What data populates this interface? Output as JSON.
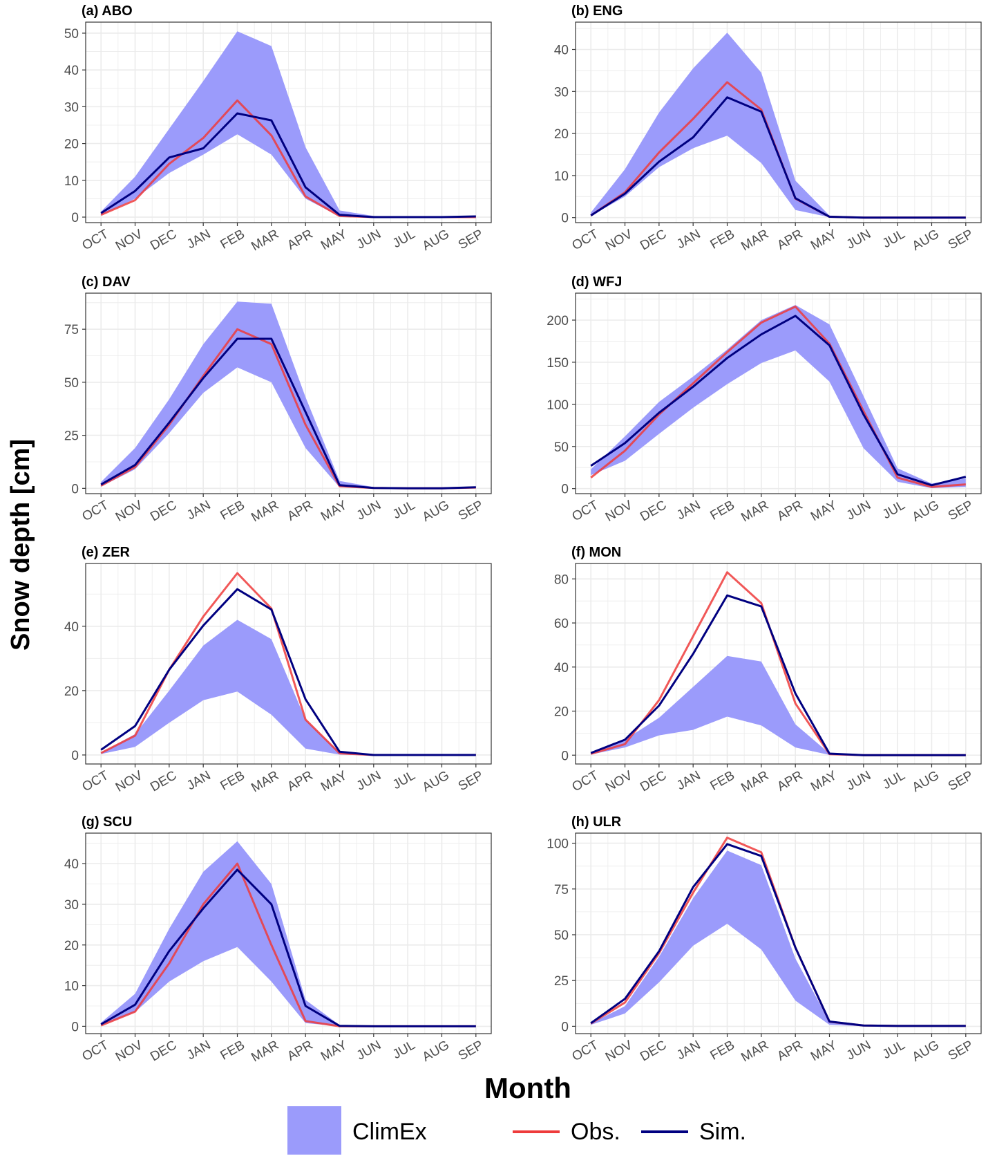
{
  "figure": {
    "ylabel": "Snow depth [cm]",
    "xlabel": "Month",
    "legend": {
      "position": "bottom",
      "band_label": "ClimEx",
      "obs_label": "Obs.",
      "sim_label": "Sim."
    },
    "colors": {
      "band": "#9b9bfb",
      "obs": "#ee3b3b",
      "sim": "#000080",
      "grid": "#ebebeb",
      "panel_border": "#333333"
    }
  },
  "chart_data": [
    {
      "type": "line",
      "title": "(a) ABO",
      "categories": [
        "OCT",
        "NOV",
        "DEC",
        "JAN",
        "FEB",
        "MAR",
        "APR",
        "MAY",
        "JUN",
        "JUL",
        "AUG",
        "SEP"
      ],
      "ylim": [
        -1.5,
        53
      ],
      "yticks": [
        0,
        10,
        20,
        30,
        40,
        50
      ],
      "grid": true,
      "band_upper": [
        1.5,
        11,
        24,
        37,
        50.5,
        46.5,
        19,
        1.8,
        0.3,
        0.2,
        0.2,
        0.3
      ],
      "band_lower": [
        0.5,
        5,
        12,
        17,
        22.5,
        17,
        5,
        0.2,
        0,
        0,
        0,
        0
      ],
      "series": [
        {
          "name": "Obs.",
          "values": [
            0.6,
            4.6,
            14.5,
            21.5,
            31.7,
            22.2,
            5.6,
            0.3,
            0,
            0,
            0,
            0
          ]
        },
        {
          "name": "Sim.",
          "values": [
            1.1,
            7.1,
            16.2,
            18.7,
            28.2,
            26.3,
            8.1,
            0.6,
            0,
            0,
            0,
            0.2
          ]
        }
      ]
    },
    {
      "type": "line",
      "title": "(b) ENG",
      "categories": [
        "OCT",
        "NOV",
        "DEC",
        "JAN",
        "FEB",
        "MAR",
        "APR",
        "MAY",
        "JUN",
        "JUL",
        "AUG",
        "SEP"
      ],
      "ylim": [
        -1.2,
        46.5
      ],
      "yticks": [
        0,
        10,
        20,
        30,
        40
      ],
      "grid": true,
      "band_upper": [
        1.2,
        11.5,
        25,
        35.5,
        44,
        34.5,
        8.8,
        0.5,
        0.1,
        0,
        0,
        0.1
      ],
      "band_lower": [
        0.4,
        5,
        12,
        16.5,
        19.5,
        13,
        1.8,
        0.1,
        0,
        0,
        0,
        0
      ],
      "series": [
        {
          "name": "Obs.",
          "values": [
            0.5,
            6,
            15.5,
            23.5,
            32.2,
            25.7,
            4.5,
            0.2,
            0,
            0,
            0,
            0
          ]
        },
        {
          "name": "Sim.",
          "values": [
            0.5,
            5.7,
            13.3,
            19.1,
            28.6,
            25.2,
            4.6,
            0.2,
            0,
            0,
            0,
            0
          ]
        }
      ]
    },
    {
      "type": "line",
      "title": "(c) DAV",
      "categories": [
        "OCT",
        "NOV",
        "DEC",
        "JAN",
        "FEB",
        "MAR",
        "APR",
        "MAY",
        "JUN",
        "JUL",
        "AUG",
        "SEP"
      ],
      "ylim": [
        -2.5,
        92
      ],
      "yticks": [
        0,
        25,
        50,
        75
      ],
      "grid": true,
      "band_upper": [
        3,
        19,
        42,
        68,
        88,
        87,
        43,
        3.5,
        0.6,
        0.2,
        0.3,
        0.8
      ],
      "band_lower": [
        0.8,
        9,
        26,
        45,
        57,
        50,
        19,
        0.5,
        0,
        0,
        0,
        0
      ],
      "series": [
        {
          "name": "Obs.",
          "values": [
            1.2,
            10,
            30,
            53,
            75,
            68,
            30,
            1,
            0.2,
            0,
            0,
            0.4
          ]
        },
        {
          "name": "Sim.",
          "values": [
            1.8,
            11,
            31,
            52,
            70.5,
            70.5,
            36,
            1.5,
            0.2,
            0,
            0,
            0.5
          ]
        }
      ]
    },
    {
      "type": "line",
      "title": "(d) WFJ",
      "categories": [
        "OCT",
        "NOV",
        "DEC",
        "JAN",
        "FEB",
        "MAR",
        "APR",
        "MAY",
        "JUN",
        "JUL",
        "AUG",
        "SEP"
      ],
      "ylim": [
        -6,
        232
      ],
      "yticks": [
        0,
        50,
        100,
        150,
        200
      ],
      "grid": true,
      "band_upper": [
        23,
        62,
        103,
        133,
        165,
        200,
        218,
        195,
        110,
        24,
        6,
        12
      ],
      "band_lower": [
        16,
        33,
        65,
        96,
        124,
        149,
        164,
        127,
        48,
        8,
        0.5,
        2
      ],
      "series": [
        {
          "name": "Obs.",
          "values": [
            13,
            45,
            88,
            125,
            162,
            197,
            216,
            172,
            92,
            13,
            2,
            5
          ]
        },
        {
          "name": "Sim.",
          "values": [
            27,
            54,
            90,
            121,
            155,
            183,
            205,
            170,
            88,
            17,
            4,
            14
          ]
        }
      ]
    },
    {
      "type": "line",
      "title": "(e) ZER",
      "categories": [
        "OCT",
        "NOV",
        "DEC",
        "JAN",
        "FEB",
        "MAR",
        "APR",
        "MAY",
        "JUN",
        "JUL",
        "AUG",
        "SEP"
      ],
      "ylim": [
        -2.8,
        59.5
      ],
      "yticks": [
        0,
        20,
        40
      ],
      "grid": true,
      "band_upper": [
        0.7,
        6.5,
        20,
        34,
        42,
        36,
        11,
        0.8,
        0.1,
        0,
        0,
        0
      ],
      "band_lower": [
        0.3,
        2.5,
        10,
        17,
        19.7,
        12.5,
        2,
        0.1,
        0,
        0,
        0,
        0
      ],
      "series": [
        {
          "name": "Obs.",
          "values": [
            0.6,
            6,
            26.5,
            43,
            56.5,
            45.5,
            11,
            0.5,
            0,
            0,
            0,
            0
          ]
        },
        {
          "name": "Sim.",
          "values": [
            1.6,
            9,
            26.5,
            40.2,
            51.5,
            45.2,
            17.3,
            1,
            0,
            0,
            0,
            0
          ]
        }
      ]
    },
    {
      "type": "line",
      "title": "(f) MON",
      "categories": [
        "OCT",
        "NOV",
        "DEC",
        "JAN",
        "FEB",
        "MAR",
        "APR",
        "MAY",
        "JUN",
        "JUL",
        "AUG",
        "SEP"
      ],
      "ylim": [
        -4,
        87
      ],
      "yticks": [
        0,
        20,
        40,
        60,
        80
      ],
      "grid": true,
      "band_upper": [
        1,
        7,
        17,
        31,
        45,
        42.5,
        14,
        0.8,
        0.1,
        0,
        0,
        0
      ],
      "band_lower": [
        0.3,
        3.5,
        9,
        11.5,
        17.5,
        13.5,
        3.5,
        0.1,
        0,
        0,
        0,
        0
      ],
      "series": [
        {
          "name": "Obs.",
          "values": [
            0.6,
            5,
            25,
            54,
            83,
            69,
            23.5,
            0.5,
            0,
            0,
            0,
            0
          ]
        },
        {
          "name": "Sim.",
          "values": [
            1,
            7,
            22.5,
            46,
            72.5,
            67.5,
            28,
            0.7,
            0,
            0,
            0,
            0
          ]
        }
      ]
    },
    {
      "type": "line",
      "title": "(g) SCU",
      "categories": [
        "OCT",
        "NOV",
        "DEC",
        "JAN",
        "FEB",
        "MAR",
        "APR",
        "MAY",
        "JUN",
        "JUL",
        "AUG",
        "SEP"
      ],
      "ylim": [
        -1.8,
        47.5
      ],
      "yticks": [
        0,
        10,
        20,
        30,
        40
      ],
      "grid": true,
      "band_upper": [
        0.9,
        8,
        24,
        38,
        45.5,
        35,
        6.5,
        0.3,
        0.1,
        0,
        0,
        0
      ],
      "band_lower": [
        0.2,
        3.5,
        11,
        16,
        19.5,
        11,
        0.8,
        0,
        0,
        0,
        0,
        0
      ],
      "series": [
        {
          "name": "Obs.",
          "values": [
            0.2,
            3.6,
            15.5,
            30,
            40,
            20,
            1.3,
            0,
            0,
            0,
            0,
            0
          ]
        },
        {
          "name": "Sim.",
          "values": [
            0.5,
            5.3,
            18.5,
            29,
            38.5,
            30,
            5,
            0.1,
            0,
            0,
            0,
            0
          ]
        }
      ]
    },
    {
      "type": "line",
      "title": "(h) ULR",
      "categories": [
        "OCT",
        "NOV",
        "DEC",
        "JAN",
        "FEB",
        "MAR",
        "APR",
        "MAY",
        "JUN",
        "JUL",
        "AUG",
        "SEP"
      ],
      "ylim": [
        -4,
        105.5
      ],
      "yticks": [
        0,
        25,
        50,
        75,
        100
      ],
      "grid": true,
      "band_upper": [
        1.5,
        11,
        38,
        70,
        96,
        88,
        37,
        2.5,
        0.3,
        0.2,
        0.2,
        0.2
      ],
      "band_lower": [
        0.8,
        7,
        24,
        44,
        56,
        42,
        14,
        0.8,
        0,
        0,
        0,
        0
      ],
      "series": [
        {
          "name": "Obs.",
          "values": [
            1.5,
            13,
            40,
            73,
            103,
            95,
            43,
            2.5,
            0.4,
            0.2,
            0.2,
            0.2
          ]
        },
        {
          "name": "Sim.",
          "values": [
            1.7,
            15,
            41,
            76,
            99.5,
            93,
            43,
            2.6,
            0.4,
            0.2,
            0.2,
            0.2
          ]
        }
      ]
    }
  ]
}
